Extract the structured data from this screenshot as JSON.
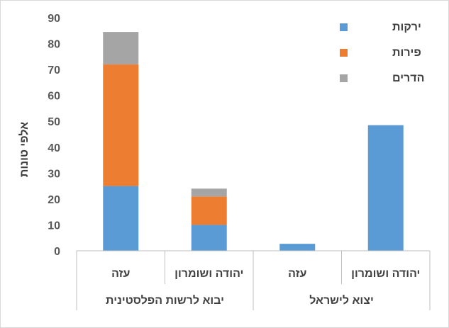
{
  "chart_data": {
    "type": "bar",
    "stacked": true,
    "categories": [
      "עזה",
      "יהודה ושומרון",
      "עזה",
      "יהודה ושומרון"
    ],
    "groups": [
      {
        "label": "יבוא לרשות הפלסטינית",
        "categories": [
          0,
          1
        ]
      },
      {
        "label": "יצוא לישראל",
        "categories": [
          2,
          3
        ]
      }
    ],
    "series": [
      {
        "name": "ירקות",
        "values": [
          25,
          10,
          2.7,
          48.5
        ],
        "color": "#5B9BD5"
      },
      {
        "name": "פירות",
        "values": [
          47,
          11,
          0,
          0
        ],
        "color": "#ED7D31"
      },
      {
        "name": "הדרים",
        "values": [
          12.5,
          3,
          0,
          0
        ],
        "color": "#A5A5A5"
      }
    ],
    "ylabel": "אלפי טונות",
    "ylim": [
      0,
      90
    ],
    "yticks": [
      0,
      10,
      20,
      30,
      40,
      50,
      60,
      70,
      80,
      90
    ],
    "grid": false,
    "legend": "top-right"
  }
}
